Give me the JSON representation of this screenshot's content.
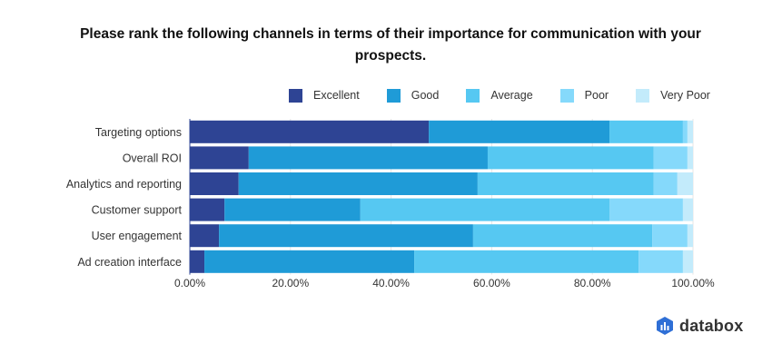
{
  "chart_data": {
    "type": "bar",
    "orientation": "horizontal",
    "stacked": true,
    "title": "Please rank the following channels in terms of their importance for communication with your prospects.",
    "xlabel": "",
    "ylabel": "",
    "xlim": [
      0,
      100
    ],
    "x_ticks": [
      "0.00%",
      "20.00%",
      "40.00%",
      "60.00%",
      "80.00%",
      "100.00%"
    ],
    "x_tick_values": [
      0,
      20,
      40,
      60,
      80,
      100
    ],
    "grid": true,
    "legend_position": "top-right",
    "categories": [
      "Targeting options",
      "Overall ROI",
      "Analytics and reporting",
      "Customer support",
      "User engagement",
      "Ad creation interface"
    ],
    "series": [
      {
        "name": "Excellent",
        "color": "#2e4494",
        "values": [
          47.5,
          11.7,
          9.7,
          6.9,
          5.8,
          2.9
        ]
      },
      {
        "name": "Good",
        "color": "#1f9bd7",
        "values": [
          35.9,
          47.5,
          47.5,
          27.0,
          50.5,
          41.7
        ]
      },
      {
        "name": "Average",
        "color": "#56c8f2",
        "values": [
          14.6,
          33.0,
          35.0,
          49.5,
          35.6,
          44.6
        ]
      },
      {
        "name": "Poor",
        "color": "#85d9fb",
        "values": [
          0.9,
          6.7,
          4.7,
          14.6,
          7.0,
          8.8
        ]
      },
      {
        "name": "Very Poor",
        "color": "#c3ebfb",
        "values": [
          1.1,
          1.1,
          3.1,
          2.0,
          1.1,
          2.0
        ]
      }
    ]
  },
  "brand": {
    "name": "databox",
    "icon": "databox-logo-icon"
  }
}
